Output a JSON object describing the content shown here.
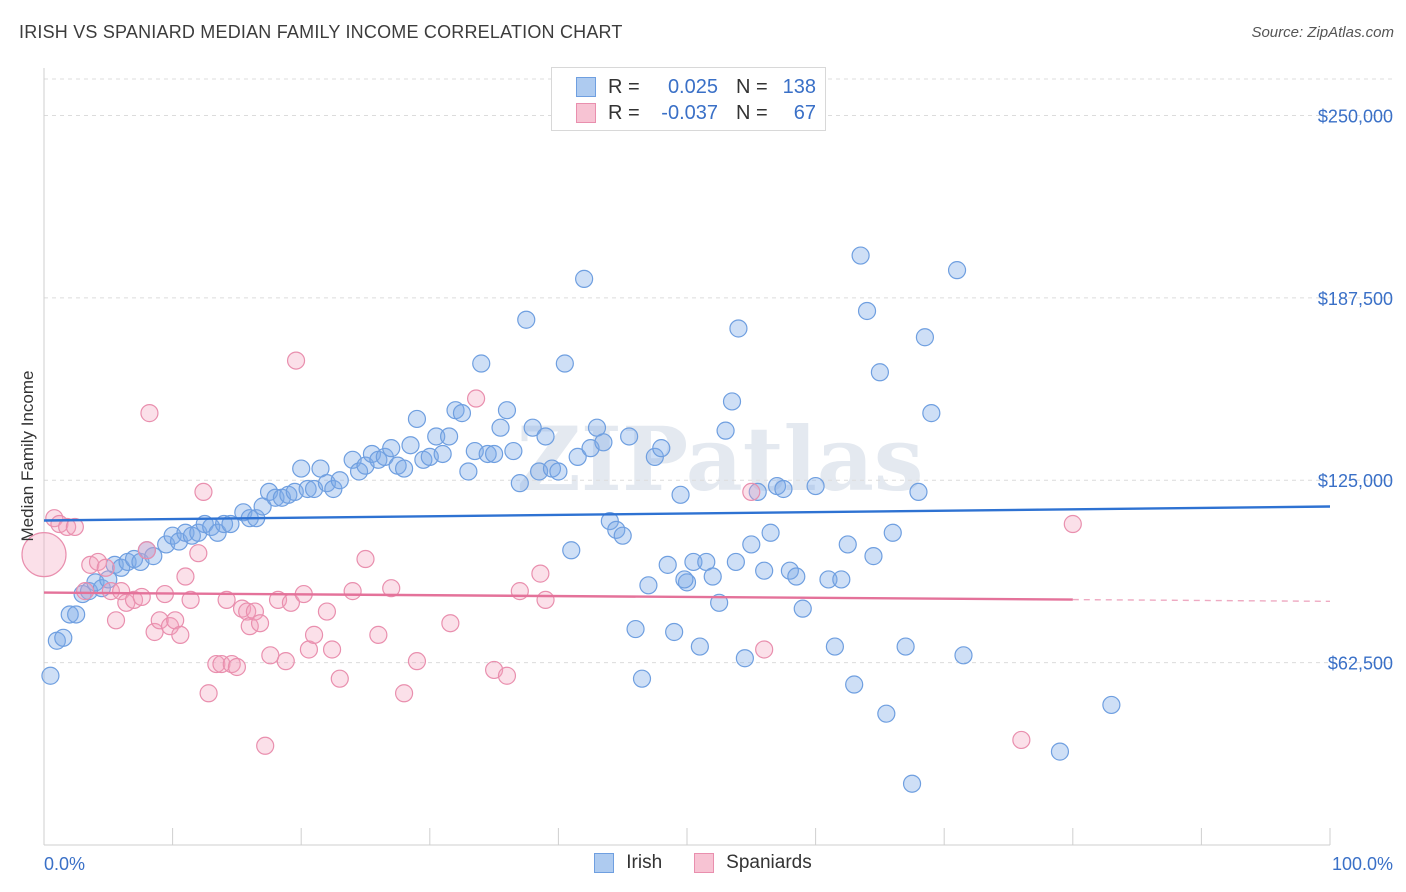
{
  "header": {
    "title": "IRISH VS SPANIARD MEDIAN FAMILY INCOME CORRELATION CHART",
    "source": "Source: ZipAtlas.com"
  },
  "watermark": "ZIPatlas",
  "legend": {
    "rows": [
      {
        "r_label": "R =",
        "r_value": "0.025",
        "n_label": "N =",
        "n_value": "138",
        "fill": "#aecbf0",
        "stroke": "#6f9fe0"
      },
      {
        "r_label": "R =",
        "r_value": "-0.037",
        "n_label": "N =",
        "n_value": "67",
        "fill": "#f7c3d3",
        "stroke": "#e98fae"
      }
    ]
  },
  "bottom_legend": [
    {
      "label": "Irish",
      "fill": "#aecbf0",
      "stroke": "#6f9fe0"
    },
    {
      "label": "Spaniards",
      "fill": "#f7c3d3",
      "stroke": "#e98fae"
    }
  ],
  "colors": {
    "irish_fill": "rgba(125,170,232,0.38)",
    "irish_stroke": "#6f9fe0",
    "irish_line": "#2e72d2",
    "span_fill": "rgba(243,160,188,0.33)",
    "span_stroke": "#e98fae",
    "span_line": "#e4729a",
    "tick_label": "#3a70c7",
    "grid": "#dcdcdc"
  },
  "chart_data": {
    "type": "scatter",
    "title": "IRISH VS SPANIARD MEDIAN FAMILY INCOME CORRELATION CHART",
    "ylabel": "Median Family Income",
    "xlabel": "",
    "xlim": [
      0,
      100
    ],
    "ylim": [
      0,
      262500
    ],
    "x_tick_labels": [
      "0.0%",
      "100.0%"
    ],
    "y_ticks": [
      62500,
      125000,
      187500,
      250000
    ],
    "y_tick_labels": [
      "$62,500",
      "$125,000",
      "$187,500",
      "$250,000"
    ],
    "grid": true,
    "legend_position": "top-center",
    "series": [
      {
        "name": "Irish",
        "trend": {
          "x": [
            0,
            100
          ],
          "y": [
            111200,
            116000
          ],
          "dashed_from": null
        },
        "points": [
          [
            0.5,
            58000
          ],
          [
            1,
            70000
          ],
          [
            1.5,
            71000
          ],
          [
            2,
            79000
          ],
          [
            2.5,
            79000
          ],
          [
            3,
            86000
          ],
          [
            3.5,
            87000
          ],
          [
            4,
            90000
          ],
          [
            4.5,
            88000
          ],
          [
            5,
            91000
          ],
          [
            5.5,
            96000
          ],
          [
            6,
            95000
          ],
          [
            6.5,
            97000
          ],
          [
            7,
            98000
          ],
          [
            7.5,
            97000
          ],
          [
            8,
            101000
          ],
          [
            8.5,
            99000
          ],
          [
            9.5,
            103000
          ],
          [
            10,
            106000
          ],
          [
            10.5,
            104000
          ],
          [
            11,
            107000
          ],
          [
            11.5,
            106000
          ],
          [
            12,
            107000
          ],
          [
            12.5,
            110000
          ],
          [
            13,
            109000
          ],
          [
            13.5,
            107000
          ],
          [
            14,
            110000
          ],
          [
            14.5,
            110000
          ],
          [
            15.5,
            114000
          ],
          [
            16,
            112000
          ],
          [
            16.5,
            112000
          ],
          [
            17,
            116000
          ],
          [
            17.5,
            121000
          ],
          [
            18,
            119000
          ],
          [
            18.5,
            119000
          ],
          [
            19,
            120000
          ],
          [
            19.5,
            121000
          ],
          [
            20,
            129000
          ],
          [
            20.5,
            122000
          ],
          [
            21,
            122000
          ],
          [
            21.5,
            129000
          ],
          [
            22,
            124000
          ],
          [
            22.5,
            122000
          ],
          [
            23,
            125000
          ],
          [
            24,
            132000
          ],
          [
            24.5,
            128000
          ],
          [
            25,
            130000
          ],
          [
            25.5,
            134000
          ],
          [
            26,
            132000
          ],
          [
            26.5,
            133000
          ],
          [
            27,
            136000
          ],
          [
            27.5,
            130000
          ],
          [
            28,
            129000
          ],
          [
            28.5,
            137000
          ],
          [
            29,
            146000
          ],
          [
            29.5,
            132000
          ],
          [
            30,
            133000
          ],
          [
            30.5,
            140000
          ],
          [
            31,
            134000
          ],
          [
            31.5,
            140000
          ],
          [
            32,
            149000
          ],
          [
            32.5,
            148000
          ],
          [
            33,
            128000
          ],
          [
            33.5,
            135000
          ],
          [
            34,
            165000
          ],
          [
            34.5,
            134000
          ],
          [
            35,
            134000
          ],
          [
            35.5,
            143000
          ],
          [
            36,
            149000
          ],
          [
            36.5,
            135000
          ],
          [
            37,
            124000
          ],
          [
            37.5,
            180000
          ],
          [
            38,
            143000
          ],
          [
            38.5,
            128000
          ],
          [
            39,
            140000
          ],
          [
            39.5,
            129000
          ],
          [
            40,
            128000
          ],
          [
            40.5,
            165000
          ],
          [
            41,
            101000
          ],
          [
            41.5,
            133000
          ],
          [
            42,
            194000
          ],
          [
            42.5,
            136000
          ],
          [
            43,
            143000
          ],
          [
            43.5,
            138000
          ],
          [
            44,
            111000
          ],
          [
            44.5,
            108000
          ],
          [
            45,
            106000
          ],
          [
            45.5,
            140000
          ],
          [
            46,
            74000
          ],
          [
            46.5,
            57000
          ],
          [
            47,
            89000
          ],
          [
            47.5,
            133000
          ],
          [
            48,
            136000
          ],
          [
            48.5,
            96000
          ],
          [
            49,
            73000
          ],
          [
            49.5,
            120000
          ],
          [
            50,
            90000
          ],
          [
            50.5,
            97000
          ],
          [
            51,
            68000
          ],
          [
            51.5,
            97000
          ],
          [
            52,
            92000
          ],
          [
            52.5,
            83000
          ],
          [
            53,
            142000
          ],
          [
            53.5,
            152000
          ],
          [
            54,
            177000
          ],
          [
            54.5,
            64000
          ],
          [
            55,
            103000
          ],
          [
            55.5,
            121000
          ],
          [
            56,
            94000
          ],
          [
            56.5,
            107000
          ],
          [
            57,
            123000
          ],
          [
            57.5,
            122000
          ],
          [
            58,
            94000
          ],
          [
            58.5,
            92000
          ],
          [
            59,
            81000
          ],
          [
            60,
            123000
          ],
          [
            61,
            91000
          ],
          [
            61.5,
            68000
          ],
          [
            62,
            91000
          ],
          [
            62.5,
            103000
          ],
          [
            63,
            55000
          ],
          [
            63.5,
            202000
          ],
          [
            64,
            183000
          ],
          [
            64.5,
            99000
          ],
          [
            65,
            162000
          ],
          [
            65.5,
            45000
          ],
          [
            66,
            107000
          ],
          [
            67,
            68000
          ],
          [
            67.5,
            21000
          ],
          [
            68,
            121000
          ],
          [
            68.5,
            174000
          ],
          [
            69,
            148000
          ],
          [
            71,
            197000
          ],
          [
            71.5,
            65000
          ],
          [
            79,
            32000
          ],
          [
            83,
            48000
          ],
          [
            53.8,
            97000
          ],
          [
            49.8,
            91000
          ]
        ]
      },
      {
        "name": "Spaniards",
        "trend": {
          "x": [
            0,
            100
          ],
          "y": [
            86500,
            83500
          ],
          "dashed_from": 80
        },
        "points": [
          [
            0,
            99500
          ],
          [
            0.8,
            112000
          ],
          [
            1.2,
            110000
          ],
          [
            1.8,
            109000
          ],
          [
            2.4,
            109000
          ],
          [
            3.2,
            87000
          ],
          [
            3.6,
            96000
          ],
          [
            4.2,
            97000
          ],
          [
            4.8,
            95000
          ],
          [
            5.2,
            87000
          ],
          [
            5.6,
            77000
          ],
          [
            6,
            87000
          ],
          [
            6.4,
            83000
          ],
          [
            7,
            84000
          ],
          [
            7.6,
            85000
          ],
          [
            8,
            101000
          ],
          [
            8.2,
            148000
          ],
          [
            8.6,
            73000
          ],
          [
            9,
            77000
          ],
          [
            9.4,
            86000
          ],
          [
            9.8,
            75000
          ],
          [
            10.2,
            77000
          ],
          [
            10.6,
            72000
          ],
          [
            11,
            92000
          ],
          [
            11.4,
            84000
          ],
          [
            12,
            100000
          ],
          [
            12.4,
            121000
          ],
          [
            12.8,
            52000
          ],
          [
            13.4,
            62000
          ],
          [
            13.8,
            62000
          ],
          [
            14.2,
            84000
          ],
          [
            14.6,
            62000
          ],
          [
            15,
            61000
          ],
          [
            15.4,
            81000
          ],
          [
            15.8,
            80000
          ],
          [
            16,
            75000
          ],
          [
            16.4,
            80000
          ],
          [
            16.8,
            76000
          ],
          [
            17.2,
            34000
          ],
          [
            17.6,
            65000
          ],
          [
            18.2,
            84000
          ],
          [
            18.8,
            63000
          ],
          [
            19.2,
            83000
          ],
          [
            19.6,
            166000
          ],
          [
            20.2,
            86000
          ],
          [
            20.6,
            67000
          ],
          [
            21,
            72000
          ],
          [
            22,
            80000
          ],
          [
            22.4,
            67000
          ],
          [
            23,
            57000
          ],
          [
            24,
            87000
          ],
          [
            25,
            98000
          ],
          [
            26,
            72000
          ],
          [
            27,
            88000
          ],
          [
            28,
            52000
          ],
          [
            29,
            63000
          ],
          [
            31.6,
            76000
          ],
          [
            33.6,
            153000
          ],
          [
            35,
            60000
          ],
          [
            36,
            58000
          ],
          [
            37,
            87000
          ],
          [
            38.6,
            93000
          ],
          [
            39,
            84000
          ],
          [
            55,
            121000
          ],
          [
            56,
            67000
          ],
          [
            76,
            36000
          ],
          [
            80,
            110000
          ]
        ]
      }
    ]
  }
}
